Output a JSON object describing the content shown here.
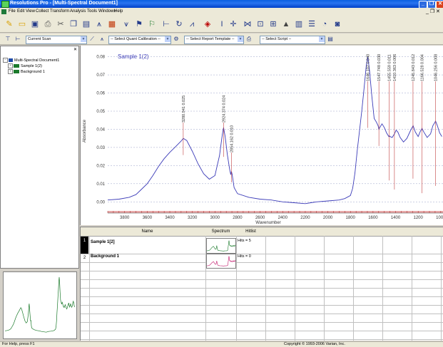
{
  "window": {
    "title": "Resolutions Pro - [Multi-Spectral Document1]",
    "controls": [
      "_",
      "❐",
      "✕"
    ],
    "mdi_controls": "_ ❐ ✕"
  },
  "menu": [
    "File",
    "Edit",
    "View",
    "Collect",
    "Transform",
    "Analysis",
    "Tools",
    "Windows",
    "Help"
  ],
  "toolbar2": {
    "scan_select": "Current Scan",
    "quant_calibration": "-- Select Quant Calibration --",
    "report_template": "-- Select Report Template --",
    "script": "-- Select Script --"
  },
  "tree": {
    "close_glyph": "✕",
    "root": "Multi-Spectral Document1",
    "children": [
      "Sample 1(2)",
      "Background 1"
    ]
  },
  "spectrum": {
    "sample_label": "Sample 1(2)",
    "peak_labels": [
      "3280.941  0.025",
      "2924.374  0.024",
      "2854.162  0.010",
      "1646.102  0.040",
      "1547.748  0.030",
      "1455.559  0.011",
      "1410.363  0.006",
      "1245.843  0.012",
      "1166.528  0.004",
      "1046.256  0.008"
    ]
  },
  "chart_data": {
    "type": "line",
    "title": "",
    "xlabel": "Wavenumber",
    "ylabel": "Absorbance",
    "xlim": [
      3950,
      980
    ],
    "ylim": [
      -0.005,
      0.083
    ],
    "x_reversed": true,
    "xticks": [
      3800,
      3600,
      3400,
      3200,
      3000,
      2800,
      2600,
      2400,
      2200,
      2000,
      1800,
      1600,
      1400,
      1200,
      1000
    ],
    "yticks": [
      0.0,
      0.01,
      0.02,
      0.03,
      0.04,
      0.05,
      0.06,
      0.07,
      0.08
    ],
    "ytick_labels": [
      "0.00",
      "0.01",
      "0.02",
      "0.03",
      "0.04",
      "0.05",
      "0.06",
      "0.07",
      "0.08"
    ],
    "series": [
      {
        "color": "#3b3bb8",
        "x": [
          3950,
          3850,
          3760,
          3700,
          3650,
          3600,
          3550,
          3500,
          3450,
          3400,
          3350,
          3300,
          3280,
          3250,
          3200,
          3150,
          3100,
          3050,
          3000,
          2960,
          2935,
          2924,
          2910,
          2890,
          2870,
          2860,
          2854,
          2848,
          2830,
          2800,
          2700,
          2600,
          2500,
          2400,
          2300,
          2200,
          2150,
          2100,
          2000,
          1900,
          1850,
          1800,
          1780,
          1760,
          1740,
          1720,
          1700,
          1680,
          1660,
          1646,
          1630,
          1610,
          1590,
          1570,
          1555,
          1548,
          1540,
          1520,
          1500,
          1480,
          1460,
          1455,
          1450,
          1430,
          1410,
          1395,
          1380,
          1360,
          1330,
          1300,
          1270,
          1245,
          1225,
          1200,
          1180,
          1166,
          1150,
          1120,
          1090,
          1070,
          1046,
          1030,
          1010,
          990
        ],
        "y": [
          0.001,
          0.0015,
          0.0025,
          0.004,
          0.007,
          0.01,
          0.0145,
          0.0195,
          0.0238,
          0.0273,
          0.0303,
          0.0335,
          0.035,
          0.0338,
          0.0278,
          0.021,
          0.0155,
          0.0125,
          0.0145,
          0.0255,
          0.037,
          0.041,
          0.036,
          0.026,
          0.018,
          0.015,
          0.0168,
          0.0152,
          0.0078,
          0.0045,
          0.0025,
          0.0015,
          0.001,
          0.0,
          -0.0005,
          -0.001,
          -0.0005,
          0.0,
          0.0005,
          0.001,
          0.0018,
          0.0035,
          0.0075,
          0.016,
          0.028,
          0.039,
          0.05,
          0.062,
          0.075,
          0.08,
          0.072,
          0.058,
          0.046,
          0.044,
          0.042,
          0.04,
          0.041,
          0.043,
          0.041,
          0.038,
          0.036,
          0.0365,
          0.036,
          0.0355,
          0.0375,
          0.0395,
          0.0385,
          0.0355,
          0.033,
          0.035,
          0.039,
          0.042,
          0.0385,
          0.036,
          0.039,
          0.0405,
          0.0385,
          0.0355,
          0.0375,
          0.042,
          0.0445,
          0.042,
          0.038,
          0.036
        ]
      }
    ]
  },
  "table": {
    "headers": [
      "Name",
      "Spectrum",
      "Hitlist"
    ],
    "rows": [
      {
        "num": "1",
        "name": "Sample 1[2]",
        "hitlist": "Hits = 5",
        "color": "#1b7a2b"
      },
      {
        "num": "2",
        "name": "Background 1",
        "hitlist": "Hits = 0",
        "color": "#c2186b"
      }
    ]
  },
  "status": {
    "left": "For Help, press F1",
    "center": "Copyright © 1993-2006 Varian, Inc."
  },
  "colors": {
    "spectrum_line": "#3b3bb8",
    "annotation": "#c04040",
    "title_bar": "#0a5fe0"
  }
}
